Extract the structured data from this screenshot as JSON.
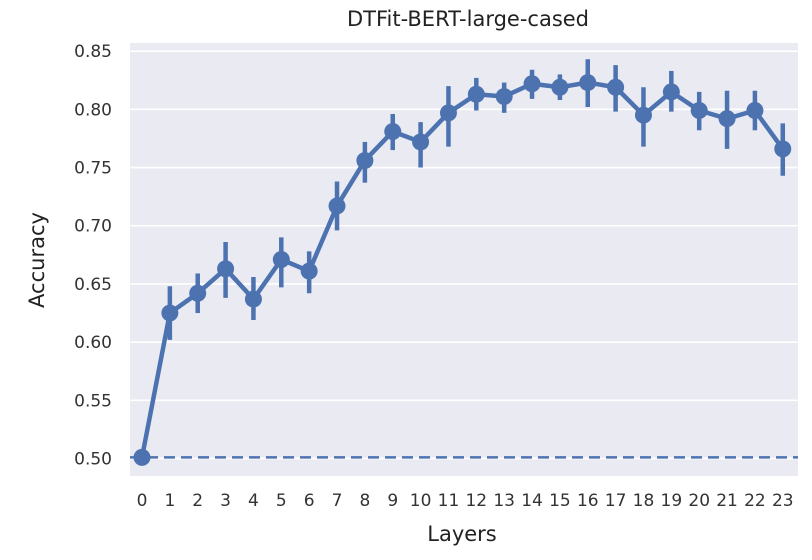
{
  "chart_data": {
    "type": "line",
    "title": "DTFit-BERT-large-cased",
    "xlabel": "Layers",
    "ylabel": "Accuracy",
    "categories": [
      "0",
      "1",
      "2",
      "3",
      "4",
      "5",
      "6",
      "7",
      "8",
      "9",
      "10",
      "11",
      "12",
      "13",
      "14",
      "15",
      "16",
      "17",
      "18",
      "19",
      "20",
      "21",
      "22",
      "23"
    ],
    "ylim": [
      0.485,
      0.857
    ],
    "yticks": [
      "0.50",
      "0.55",
      "0.60",
      "0.65",
      "0.70",
      "0.75",
      "0.80",
      "0.85"
    ],
    "grid": true,
    "series": [
      {
        "values": [
          0.501,
          0.625,
          0.642,
          0.663,
          0.637,
          0.671,
          0.661,
          0.717,
          0.756,
          0.781,
          0.772,
          0.797,
          0.813,
          0.811,
          0.822,
          0.819,
          0.823,
          0.819,
          0.795,
          0.815,
          0.799,
          0.792,
          0.799,
          0.766
        ],
        "err_low": [
          0.501,
          0.602,
          0.625,
          0.638,
          0.619,
          0.647,
          0.642,
          0.696,
          0.737,
          0.765,
          0.75,
          0.768,
          0.799,
          0.797,
          0.809,
          0.808,
          0.802,
          0.798,
          0.768,
          0.798,
          0.782,
          0.766,
          0.782,
          0.743
        ],
        "err_high": [
          0.501,
          0.648,
          0.659,
          0.686,
          0.656,
          0.69,
          0.678,
          0.738,
          0.772,
          0.796,
          0.789,
          0.82,
          0.827,
          0.823,
          0.834,
          0.83,
          0.843,
          0.838,
          0.819,
          0.833,
          0.815,
          0.816,
          0.816,
          0.788
        ]
      }
    ],
    "baseline": 0.501,
    "colors": {
      "series": "#4c72b0",
      "plot_background": "#eaeaf2",
      "grid": "#ffffff"
    }
  }
}
